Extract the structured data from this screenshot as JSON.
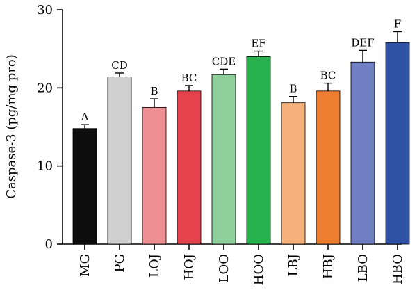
{
  "chart_data": {
    "type": "bar",
    "title": "",
    "xlabel": "",
    "ylabel": "Caspase-3 (pg/mg pro)",
    "ylim": [
      0,
      30
    ],
    "yticks": [
      0,
      10,
      20,
      30
    ],
    "grid": false,
    "categories": [
      "MG",
      "PG",
      "LOJ",
      "HOJ",
      "LOO",
      "HOO",
      "LBJ",
      "HBJ",
      "LBO",
      "HBO"
    ],
    "values": [
      14.8,
      21.4,
      17.5,
      19.6,
      21.7,
      24.0,
      18.1,
      19.6,
      23.3,
      25.8
    ],
    "errors": [
      0.5,
      0.5,
      1.1,
      0.7,
      0.7,
      0.7,
      0.8,
      1.0,
      1.5,
      1.4
    ],
    "labels": [
      "A",
      "CD",
      "B",
      "BC",
      "CDE",
      "EF",
      "B",
      "BC",
      "DEF",
      "F"
    ],
    "colors": [
      "#0d0d0d",
      "#cfcfcf",
      "#ee8f93",
      "#e6434e",
      "#8ecf9b",
      "#27b24d",
      "#f6b27b",
      "#ed7d31",
      "#6f7fc1",
      "#2f52a7"
    ]
  }
}
